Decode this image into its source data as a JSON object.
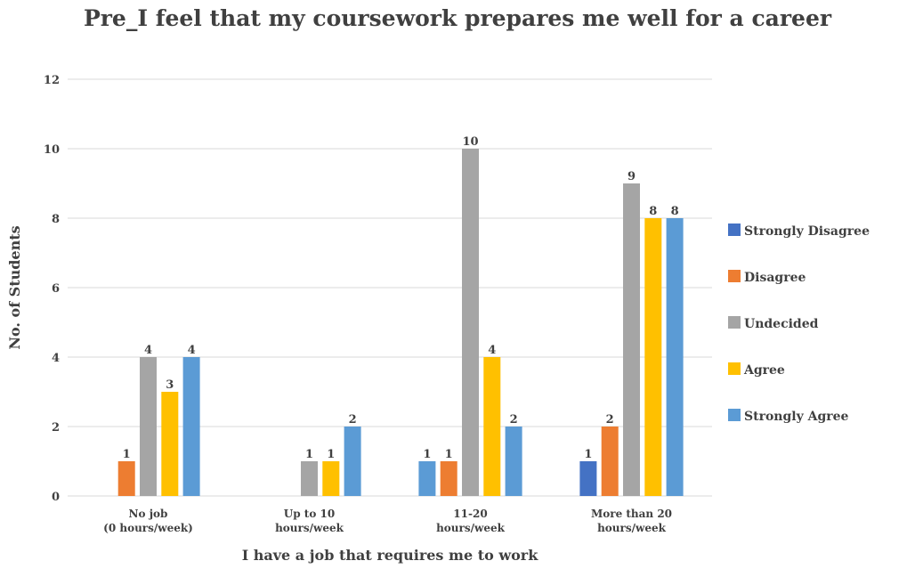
{
  "chart_data": {
    "type": "bar",
    "title": "Pre_I feel that my coursework prepares me well for a career",
    "xlabel": "I have a job that requires me to work",
    "ylabel": "No. of Students",
    "ylim": [
      0,
      12
    ],
    "yticks": [
      0,
      2,
      4,
      6,
      8,
      10,
      12
    ],
    "grid": true,
    "legend_position": "right",
    "categories": [
      [
        "No job",
        "(0 hours/week)"
      ],
      [
        "Up to 10",
        "hours/week"
      ],
      [
        "11-20",
        "hours/week"
      ],
      [
        "More than 20",
        "hours/week"
      ]
    ],
    "series": [
      {
        "name": "Strongly Disagree",
        "color": "#4472C4",
        "values": [
          null,
          null,
          null,
          1
        ]
      },
      {
        "name": "Disagree",
        "color": "#ED7D31",
        "values": [
          1,
          null,
          1,
          2
        ]
      },
      {
        "name": "Undecided",
        "color": "#A5A5A5",
        "values": [
          4,
          1,
          10,
          9
        ]
      },
      {
        "name": "Agree",
        "color": "#FFC000",
        "values": [
          3,
          1,
          4,
          8
        ]
      },
      {
        "name": "Strongly Agree",
        "color": "#5B9BD5",
        "values": [
          4,
          2,
          2,
          8
        ]
      }
    ],
    "group_overrides": [
      null,
      null,
      {
        "note": "first bar drawn in strongly-agree blue",
        "colors": [
          "#5B9BD5",
          "#ED7D31",
          "#A5A5A5",
          "#FFC000",
          "#5B9BD5"
        ],
        "values": [
          1,
          1,
          10,
          4,
          2
        ]
      },
      null
    ]
  }
}
